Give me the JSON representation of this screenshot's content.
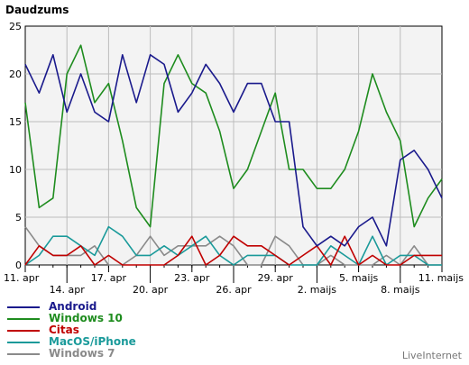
{
  "chart_data": {
    "type": "line",
    "ylabel": "Daudzums",
    "ylim": [
      0,
      25
    ],
    "yticks": [
      0,
      5,
      10,
      15,
      20,
      25
    ],
    "x_tick_labels": [
      {
        "i": 0,
        "label": "11. apr",
        "row": 0
      },
      {
        "i": 3,
        "label": "14. apr",
        "row": 1
      },
      {
        "i": 6,
        "label": "17. apr",
        "row": 0
      },
      {
        "i": 9,
        "label": "20. apr",
        "row": 1
      },
      {
        "i": 12,
        "label": "23. apr",
        "row": 0
      },
      {
        "i": 15,
        "label": "26. apr",
        "row": 1
      },
      {
        "i": 18,
        "label": "29. apr",
        "row": 0
      },
      {
        "i": 21,
        "label": "2. maijs",
        "row": 1
      },
      {
        "i": 24,
        "label": "5. maijs",
        "row": 0
      },
      {
        "i": 27,
        "label": "8. maijs",
        "row": 1
      },
      {
        "i": 30,
        "label": "11. maijs",
        "row": 0
      }
    ],
    "x_count": 31,
    "grid": true,
    "series": [
      {
        "name": "Android",
        "color": "#1a1a8c",
        "values": [
          21,
          18,
          22,
          16,
          20,
          16,
          15,
          22,
          17,
          22,
          21,
          16,
          18,
          21,
          19,
          16,
          19,
          19,
          15,
          15,
          4,
          2,
          3,
          2,
          4,
          5,
          2,
          11,
          12,
          10,
          7
        ]
      },
      {
        "name": "Windows 10",
        "color": "#1e8c1e",
        "values": [
          17,
          6,
          7,
          20,
          23,
          17,
          19,
          13,
          6,
          4,
          19,
          22,
          19,
          18,
          14,
          8,
          10,
          14,
          18,
          10,
          10,
          8,
          8,
          10,
          14,
          20,
          16,
          13,
          4,
          7,
          9
        ]
      },
      {
        "name": "Citas",
        "color": "#c00000",
        "values": [
          0,
          2,
          1,
          1,
          2,
          0,
          1,
          0,
          0,
          0,
          0,
          1,
          3,
          0,
          1,
          3,
          2,
          2,
          1,
          0,
          1,
          2,
          0,
          3,
          0,
          1,
          0,
          0,
          1,
          1,
          1
        ]
      },
      {
        "name": "MacOS/iPhone",
        "color": "#1a9a9a",
        "values": [
          0,
          1,
          3,
          3,
          2,
          1,
          4,
          3,
          1,
          1,
          2,
          1,
          2,
          3,
          1,
          0,
          1,
          1,
          1,
          0,
          0,
          0,
          2,
          1,
          0,
          3,
          0,
          1,
          1,
          0,
          0
        ]
      },
      {
        "name": "Windows 7",
        "color": "#8a8a8a",
        "values": [
          4,
          2,
          1,
          1,
          1,
          2,
          0,
          0,
          1,
          3,
          1,
          2,
          2,
          2,
          3,
          2,
          0,
          0,
          3,
          2,
          0,
          0,
          1,
          0,
          0,
          0,
          1,
          0,
          2,
          0,
          0
        ]
      }
    ]
  },
  "footer": {
    "watermark": "LiveInternet"
  }
}
